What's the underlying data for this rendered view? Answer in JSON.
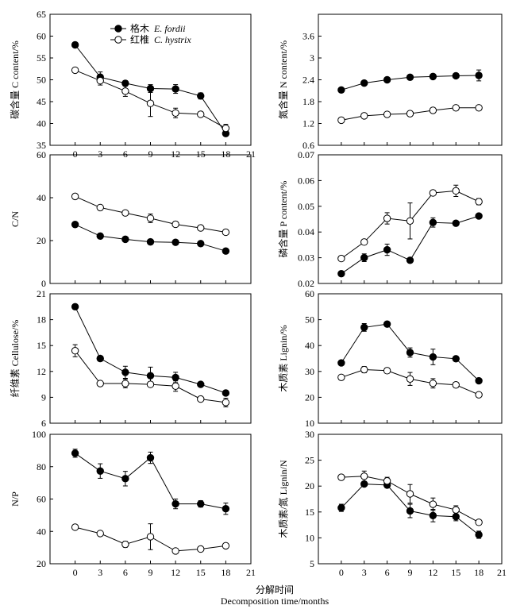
{
  "figure": {
    "xlabel_cn": "分解时间",
    "xlabel_en": "Decomposition time/months",
    "legend": [
      {
        "label_cn": "格木",
        "label_species": "E. fordii",
        "marker": "filled"
      },
      {
        "label_cn": "红椎",
        "label_species": "C. hystrix",
        "marker": "open"
      }
    ]
  },
  "chart_data": [
    {
      "id": "c",
      "type": "line",
      "ylabel": "碳含量 C content/%",
      "ylim": [
        35,
        65
      ],
      "yticks": [
        35,
        40,
        45,
        50,
        55,
        60,
        65
      ],
      "xlim": [
        -3,
        21
      ],
      "xticks": [
        0,
        3,
        6,
        9,
        12,
        15,
        18,
        21
      ],
      "x": [
        0,
        3,
        6,
        9,
        12,
        15,
        18
      ],
      "series": [
        {
          "name": "格木 E. fordii",
          "marker": "filled",
          "values": [
            58,
            50.6,
            49.2,
            48,
            47.9,
            46.3,
            37.7
          ],
          "errors": [
            0,
            1.2,
            0.6,
            0.9,
            1.0,
            0.7,
            0.5
          ]
        },
        {
          "name": "红椎 C. hystrix",
          "marker": "open",
          "values": [
            52.2,
            49.8,
            47.4,
            44.6,
            42.4,
            42.1,
            38.9
          ],
          "errors": [
            0.5,
            1.0,
            1.2,
            3.0,
            1.1,
            0.5,
            0.9
          ]
        }
      ]
    },
    {
      "id": "n",
      "type": "line",
      "ylabel": "氮含量 N content/%",
      "ylim": [
        0.6,
        4.2
      ],
      "yticks": [
        0.6,
        1.2,
        1.8,
        2.4,
        3.0,
        3.6
      ],
      "xlim": [
        -3,
        21
      ],
      "xticks": [],
      "x": [
        0,
        3,
        6,
        9,
        12,
        15,
        18
      ],
      "series": [
        {
          "name": "格木 E. fordii",
          "marker": "filled",
          "values": [
            2.12,
            2.31,
            2.4,
            2.47,
            2.49,
            2.51,
            2.52
          ],
          "errors": [
            0,
            0,
            0.05,
            0,
            0,
            0,
            0.15
          ]
        },
        {
          "name": "红椎 C. hystrix",
          "marker": "open",
          "values": [
            1.29,
            1.41,
            1.45,
            1.47,
            1.56,
            1.63,
            1.63
          ],
          "errors": [
            0,
            0.04,
            0.05,
            0.04,
            0.07,
            0.04,
            0.05
          ]
        }
      ]
    },
    {
      "id": "cn",
      "type": "line",
      "ylabel": "C/N",
      "ylim": [
        0,
        60
      ],
      "yticks": [
        0,
        20,
        40,
        60
      ],
      "xlim": [
        -3,
        21
      ],
      "xticks": [],
      "x": [
        0,
        3,
        6,
        9,
        12,
        15,
        18
      ],
      "series": [
        {
          "name": "格木 E. fordii",
          "marker": "filled",
          "values": [
            27.5,
            22.1,
            20.6,
            19.4,
            19.2,
            18.6,
            15.1
          ],
          "errors": [
            0,
            0,
            0,
            0,
            0,
            0,
            0
          ]
        },
        {
          "name": "红椎 C. hystrix",
          "marker": "open",
          "values": [
            40.6,
            35.4,
            32.9,
            30.4,
            27.6,
            25.9,
            23.9
          ],
          "errors": [
            0,
            0,
            0,
            2.0,
            1.2,
            0,
            1.0
          ]
        }
      ]
    },
    {
      "id": "p",
      "type": "line",
      "ylabel": "磷含量 P content/%",
      "ylim": [
        0.02,
        0.07
      ],
      "yticks": [
        0.02,
        0.03,
        0.04,
        0.05,
        0.06,
        0.07
      ],
      "xlim": [
        -3,
        21
      ],
      "xticks": [],
      "x": [
        0,
        3,
        6,
        9,
        12,
        15,
        18
      ],
      "series": [
        {
          "name": "格木 E. fordii",
          "marker": "filled",
          "values": [
            0.0238,
            0.03,
            0.0331,
            0.029,
            0.0437,
            0.0434,
            0.0462
          ],
          "errors": [
            0,
            0.0015,
            0.0022,
            0,
            0.0018,
            0,
            0
          ]
        },
        {
          "name": "红椎 C. hystrix",
          "marker": "open",
          "values": [
            0.0297,
            0.0361,
            0.0453,
            0.0443,
            0.0552,
            0.056,
            0.0518
          ],
          "errors": [
            0,
            0.0008,
            0.0022,
            0.007,
            0.0005,
            0.0022,
            0.0012
          ]
        }
      ]
    },
    {
      "id": "cellulose",
      "type": "line",
      "ylabel": "纤维素 Cellulose/%",
      "ylim": [
        6,
        21
      ],
      "yticks": [
        6,
        9,
        12,
        15,
        18,
        21
      ],
      "xlim": [
        -3,
        21
      ],
      "xticks": [],
      "x": [
        0,
        3,
        6,
        9,
        12,
        15,
        18
      ],
      "series": [
        {
          "name": "格木 E. fordii",
          "marker": "filled",
          "values": [
            19.5,
            13.5,
            11.9,
            11.5,
            11.3,
            10.5,
            9.5
          ],
          "errors": [
            0,
            0,
            0.7,
            1.0,
            0.6,
            0,
            0
          ]
        },
        {
          "name": "红椎 C. hystrix",
          "marker": "open",
          "values": [
            14.4,
            10.6,
            10.6,
            10.5,
            10.3,
            8.8,
            8.4
          ],
          "errors": [
            0.7,
            0,
            0.5,
            0,
            0.6,
            0,
            0.5
          ]
        }
      ]
    },
    {
      "id": "lignin",
      "type": "line",
      "ylabel": "木质素 Lignin/%",
      "ylim": [
        10,
        60
      ],
      "yticks": [
        10,
        20,
        30,
        40,
        50,
        60
      ],
      "xlim": [
        -3,
        21
      ],
      "xticks": [],
      "x": [
        0,
        3,
        6,
        9,
        12,
        15,
        18
      ],
      "series": [
        {
          "name": "格木 E. fordii",
          "marker": "filled",
          "values": [
            33.3,
            47,
            48.3,
            37.3,
            35.6,
            34.9,
            26.4
          ],
          "errors": [
            0,
            1.5,
            0.9,
            1.8,
            3.0,
            0,
            0
          ]
        },
        {
          "name": "红椎 C. hystrix",
          "marker": "open",
          "values": [
            27.7,
            30.7,
            30.3,
            27.1,
            25.4,
            24.8,
            21
          ],
          "errors": [
            0,
            1.2,
            1.0,
            2.5,
            1.8,
            1.0,
            0.5
          ]
        }
      ]
    },
    {
      "id": "np",
      "type": "line",
      "ylabel": "N/P",
      "ylim": [
        20,
        100
      ],
      "yticks": [
        20,
        40,
        60,
        80,
        100
      ],
      "xlim": [
        -3,
        21
      ],
      "xticks": [
        0,
        3,
        6,
        9,
        12,
        15,
        18,
        21
      ],
      "x": [
        0,
        3,
        6,
        9,
        12,
        15,
        18
      ],
      "series": [
        {
          "name": "格木 E. fordii",
          "marker": "filled",
          "values": [
            88.3,
            77.3,
            72.6,
            85.5,
            57,
            57,
            54
          ],
          "errors": [
            2.5,
            4.5,
            4.5,
            3.5,
            3.0,
            2.0,
            3.5
          ]
        },
        {
          "name": "红椎 C. hystrix",
          "marker": "open",
          "values": [
            42.6,
            38.7,
            32,
            36.7,
            27.9,
            29.1,
            31.1
          ],
          "errors": [
            0,
            0,
            1.8,
            8.0,
            0,
            0,
            0
          ]
        }
      ]
    },
    {
      "id": "ligninN",
      "type": "line",
      "ylabel": "木质素/氮 Lignin/N",
      "ylim": [
        5,
        30
      ],
      "yticks": [
        5,
        10,
        15,
        20,
        25,
        30
      ],
      "xlim": [
        -3,
        21
      ],
      "xticks": [
        0,
        3,
        6,
        9,
        12,
        15,
        18,
        21
      ],
      "x": [
        0,
        3,
        6,
        9,
        12,
        15,
        18
      ],
      "series": [
        {
          "name": "格木 E. fordii",
          "marker": "filled",
          "values": [
            15.8,
            20.4,
            20.2,
            15.2,
            14.3,
            14.1,
            10.6
          ],
          "errors": [
            0.7,
            0,
            0.5,
            1.3,
            1.2,
            0.8,
            0.7
          ]
        },
        {
          "name": "红椎 C. hystrix",
          "marker": "open",
          "values": [
            21.7,
            21.9,
            21,
            18.5,
            16.5,
            15.4,
            13
          ],
          "errors": [
            0,
            1.0,
            0.7,
            1.8,
            1.2,
            0.8,
            0.5
          ]
        }
      ]
    }
  ]
}
